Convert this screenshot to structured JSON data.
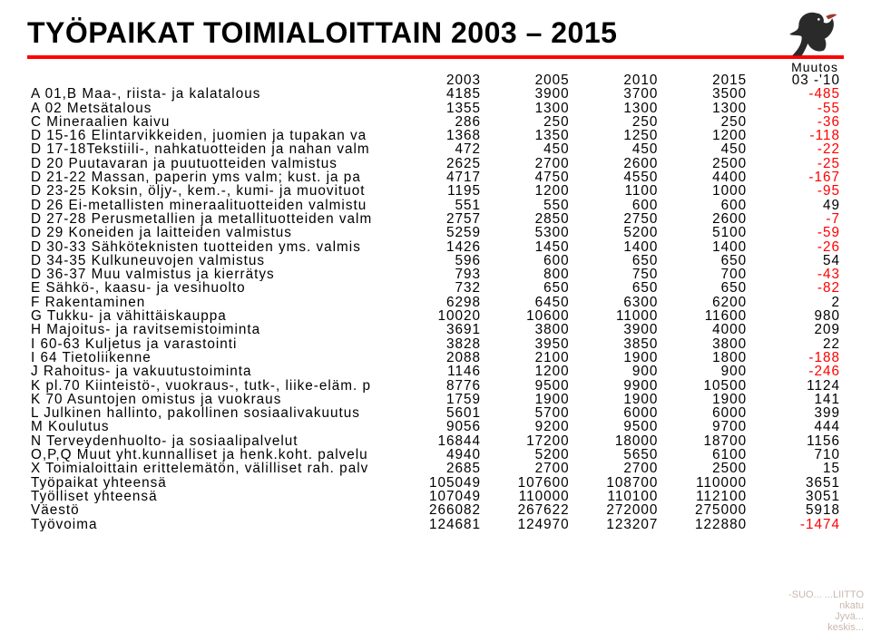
{
  "title": "TYÖPAIKAT TOIMIALOITTAIN 2003 – 2015",
  "colors": {
    "accent_line": "#ff0000",
    "negative_text": "#ff0000",
    "text": "#000000",
    "background": "#ffffff",
    "watermark": "#c9b8b0"
  },
  "header": {
    "muutos_label": "Muutos",
    "cols": [
      "2003",
      "2005",
      "2010",
      "2015",
      "03 -'10"
    ]
  },
  "rows": [
    {
      "label": "A 01,B Maa-, riista- ja kalatalous",
      "v": [
        "4185",
        "3900",
        "3700",
        "3500",
        "-485"
      ]
    },
    {
      "label": "A 02 Metsätalous",
      "v": [
        "1355",
        "1300",
        "1300",
        "1300",
        "-55"
      ]
    },
    {
      "label": "C Mineraalien kaivu",
      "v": [
        "286",
        "250",
        "250",
        "250",
        "-36"
      ]
    },
    {
      "label": "D 15-16 Elintarvikkeiden, juomien ja tupakan va",
      "v": [
        "1368",
        "1350",
        "1250",
        "1200",
        "-118"
      ]
    },
    {
      "label": "D 17-18Tekstiili-, nahkatuotteiden ja nahan valm",
      "v": [
        "472",
        "450",
        "450",
        "450",
        "-22"
      ]
    },
    {
      "label": "D 20 Puutavaran ja puutuotteiden valmistus",
      "v": [
        "2625",
        "2700",
        "2600",
        "2500",
        "-25"
      ]
    },
    {
      "label": "D 21-22 Massan, paperin yms valm; kust. ja pa",
      "v": [
        "4717",
        "4750",
        "4550",
        "4400",
        "-167"
      ]
    },
    {
      "label": "D 23-25 Koksin, öljy-, kem.-, kumi- ja muovituot",
      "v": [
        "1195",
        "1200",
        "1100",
        "1000",
        "-95"
      ]
    },
    {
      "label": "D 26 Ei-metallisten mineraalituotteiden valmistu",
      "v": [
        "551",
        "550",
        "600",
        "600",
        "49"
      ]
    },
    {
      "label": "D 27-28 Perusmetallien ja metallituotteiden valm",
      "v": [
        "2757",
        "2850",
        "2750",
        "2600",
        "-7"
      ]
    },
    {
      "label": "D 29 Koneiden ja laitteiden valmistus",
      "v": [
        "5259",
        "5300",
        "5200",
        "5100",
        "-59"
      ]
    },
    {
      "label": "D 30-33 Sähköteknisten tuotteiden yms. valmis",
      "v": [
        "1426",
        "1450",
        "1400",
        "1400",
        "-26"
      ]
    },
    {
      "label": "D 34-35 Kulkuneuvojen valmistus",
      "v": [
        "596",
        "600",
        "650",
        "650",
        "54"
      ]
    },
    {
      "label": "D 36-37 Muu valmistus  ja kierrätys",
      "v": [
        "793",
        "800",
        "750",
        "700",
        "-43"
      ]
    },
    {
      "label": "E Sähkö-, kaasu- ja vesihuolto",
      "v": [
        "732",
        "650",
        "650",
        "650",
        "-82"
      ]
    },
    {
      "label": "F Rakentaminen",
      "v": [
        "6298",
        "6450",
        "6300",
        "6200",
        "2"
      ]
    },
    {
      "label": "G Tukku- ja vähittäiskauppa",
      "v": [
        "10020",
        "10600",
        "11000",
        "11600",
        "980"
      ]
    },
    {
      "label": "H Majoitus- ja ravitsemistoiminta",
      "v": [
        "3691",
        "3800",
        "3900",
        "4000",
        "209"
      ]
    },
    {
      "label": "I 60-63  Kuljetus ja varastointi",
      "v": [
        "3828",
        "3950",
        "3850",
        "3800",
        "22"
      ]
    },
    {
      "label": "I 64 Tietoliikenne",
      "v": [
        "2088",
        "2100",
        "1900",
        "1800",
        "-188"
      ]
    },
    {
      "label": "J Rahoitus- ja vakuutustoiminta",
      "v": [
        "1146",
        "1200",
        "900",
        "900",
        "-246"
      ]
    },
    {
      "label": "K pl.70 Kiinteistö-, vuokraus-, tutk-, liike-eläm. p",
      "v": [
        "8776",
        "9500",
        "9900",
        "10500",
        "1124"
      ]
    },
    {
      "label": "K 70 Asuntojen omistus ja vuokraus",
      "v": [
        "1759",
        "1900",
        "1900",
        "1900",
        "141"
      ]
    },
    {
      "label": "L Julkinen hallinto, pakollinen sosiaalivakuutus",
      "v": [
        "5601",
        "5700",
        "6000",
        "6000",
        "399"
      ]
    },
    {
      "label": "M Koulutus",
      "v": [
        "9056",
        "9200",
        "9500",
        "9700",
        "444"
      ]
    },
    {
      "label": "N Terveydenhuolto- ja sosiaalipalvelut",
      "v": [
        "16844",
        "17200",
        "18000",
        "18700",
        "1156"
      ]
    },
    {
      "label": "O,P,Q Muut yht.kunnalliset ja henk.koht. palvelu",
      "v": [
        "4940",
        "5200",
        "5650",
        "6100",
        "710"
      ]
    },
    {
      "label": "X Toimialoittain erittelemätön, välilliset rah. palv",
      "v": [
        "2685",
        "2700",
        "2700",
        "2500",
        "15"
      ]
    },
    {
      "label": "Työpaikat yhteensä",
      "v": [
        "105049",
        "107600",
        "108700",
        "110000",
        "3651"
      ]
    },
    {
      "label": "Työlliset yhteensä",
      "v": [
        "107049",
        "110000",
        "110100",
        "112100",
        "3051"
      ]
    },
    {
      "label": "Väestö",
      "v": [
        "266082",
        "267622",
        "272000",
        "275000",
        "5918"
      ]
    },
    {
      "label": "Työvoima",
      "v": [
        "124681",
        "124970",
        "123207",
        "122880",
        "-1474"
      ]
    }
  ],
  "watermark": [
    "-SUO...  ...LIITTO",
    "nkatu",
    "Jyvä...",
    "keskis..."
  ],
  "icons": {
    "logo": "capercaillie-bird-icon"
  }
}
